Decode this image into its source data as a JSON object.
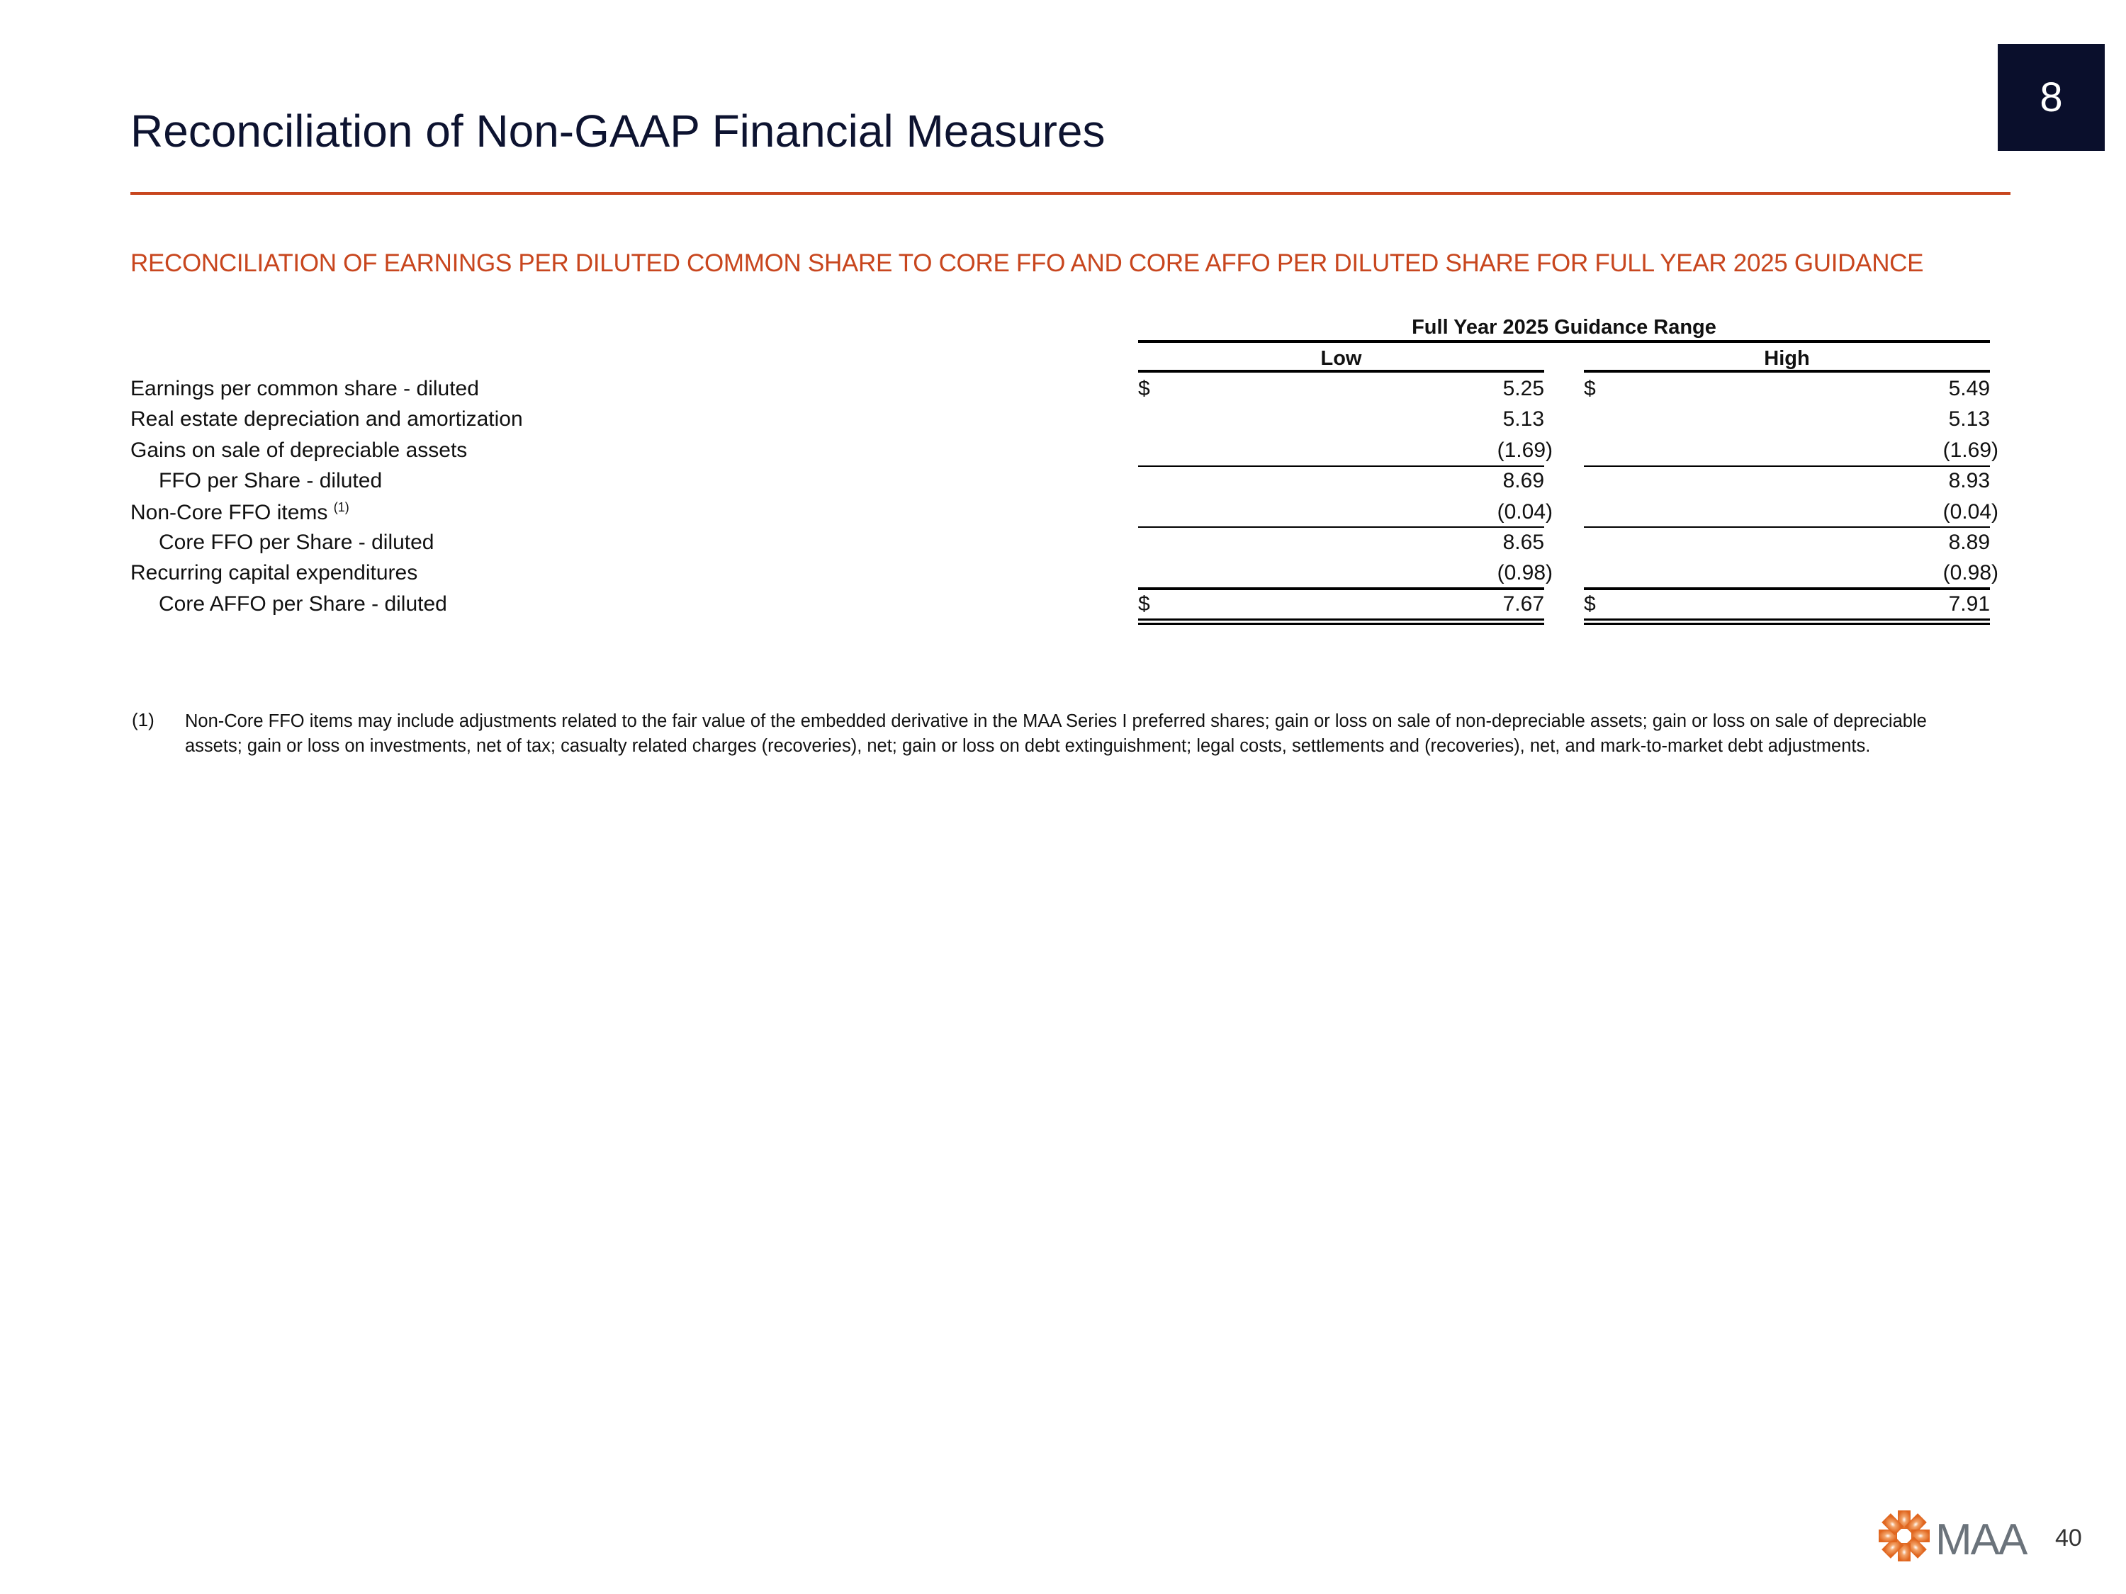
{
  "slide": {
    "title": "Reconciliation of Non-GAAP Financial Measures",
    "section_badge": "8",
    "subtitle": "RECONCILIATION OF EARNINGS PER DILUTED COMMON SHARE TO CORE FFO AND CORE AFFO PER DILUTED SHARE FOR FULL YEAR 2025 GUIDANCE",
    "page_number": "40",
    "logo_text": "MAA",
    "colors": {
      "accent": "#c8461e",
      "badge": "#0a0f2c"
    }
  },
  "table": {
    "group_header": "Full Year 2025 Guidance Range",
    "columns": [
      "Low",
      "High"
    ],
    "currency_symbol": "$",
    "rows": [
      {
        "label": "Earnings per common share - diluted",
        "low": "5.25",
        "high": "5.49",
        "dollar": true
      },
      {
        "label": "Real estate depreciation and amortization",
        "low": "5.13",
        "high": "5.13"
      },
      {
        "label": "Gains on sale of depreciable assets",
        "low": "(1.69)",
        "high": "(1.69)"
      },
      {
        "label": "FFO per Share - diluted",
        "low": "8.69",
        "high": "8.93",
        "indent": true
      },
      {
        "label": "Non-Core FFO items",
        "sup": "(1)",
        "low": "(0.04)",
        "high": "(0.04)"
      },
      {
        "label": "Core FFO per Share - diluted",
        "low": "8.65",
        "high": "8.89",
        "indent": true
      },
      {
        "label": "Recurring capital expenditures",
        "low": "(0.98)",
        "high": "(0.98)"
      },
      {
        "label": "Core AFFO per Share - diluted",
        "low": "7.67",
        "high": "7.91",
        "indent": true,
        "dollar": true
      }
    ]
  },
  "footnote": {
    "marker": "(1)",
    "text": "Non-Core FFO items may include adjustments related to the fair value of the embedded derivative in the MAA Series I preferred shares; gain or loss on sale of non-depreciable assets; gain or loss on sale of depreciable assets; gain or loss on investments, net of tax; casualty related charges (recoveries), net; gain or loss on debt extinguishment; legal costs, settlements and (recoveries), net, and mark-to-market debt adjustments."
  }
}
